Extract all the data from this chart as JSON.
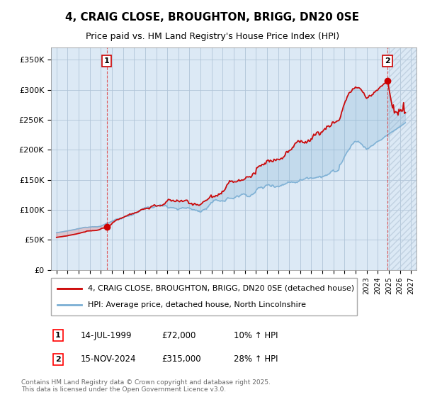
{
  "title": "4, CRAIG CLOSE, BROUGHTON, BRIGG, DN20 0SE",
  "subtitle": "Price paid vs. HM Land Registry's House Price Index (HPI)",
  "ylabel_ticks": [
    "£0",
    "£50K",
    "£100K",
    "£150K",
    "£200K",
    "£250K",
    "£300K",
    "£350K"
  ],
  "ytick_values": [
    0,
    50000,
    100000,
    150000,
    200000,
    250000,
    300000,
    350000
  ],
  "ylim": [
    0,
    370000
  ],
  "xlim_start": 1994.5,
  "xlim_end": 2027.5,
  "purchase1_date": 1999.54,
  "purchase1_price": 72000,
  "purchase2_date": 2024.88,
  "purchase2_price": 315000,
  "legend_line1": "4, CRAIG CLOSE, BROUGHTON, BRIGG, DN20 0SE (detached house)",
  "legend_line2": "HPI: Average price, detached house, North Lincolnshire",
  "ann1_date": "14-JUL-1999",
  "ann1_price": "£72,000",
  "ann1_hpi": "10% ↑ HPI",
  "ann2_date": "15-NOV-2024",
  "ann2_price": "£315,000",
  "ann2_hpi": "28% ↑ HPI",
  "footnote": "Contains HM Land Registry data © Crown copyright and database right 2025.\nThis data is licensed under the Open Government Licence v3.0.",
  "line_color_red": "#cc0000",
  "line_color_blue": "#7bafd4",
  "chart_bg_color": "#dce9f5",
  "hatch_color": "#bbccdd",
  "background_color": "#ffffff",
  "grid_color": "#b0c4d8"
}
